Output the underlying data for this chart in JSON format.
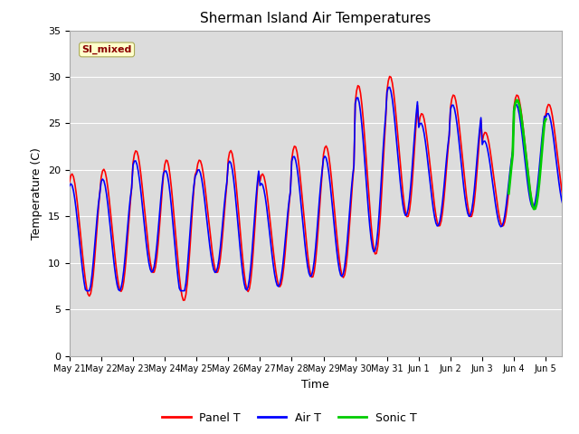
{
  "title": "Sherman Island Air Temperatures",
  "xlabel": "Time",
  "ylabel": "Temperature (C)",
  "ylim": [
    0,
    35
  ],
  "yticks": [
    0,
    5,
    10,
    15,
    20,
    25,
    30,
    35
  ],
  "bg_color": "#dcdcdc",
  "label_box_text": "SI_mixed",
  "label_box_color": "#ffffcc",
  "label_box_text_color": "#8b0000",
  "line_width": 1.2,
  "panel_t_color": "red",
  "air_t_color": "blue",
  "sonic_t_color": "#00cc00",
  "figsize": [
    6.4,
    4.8
  ],
  "dpi": 100
}
